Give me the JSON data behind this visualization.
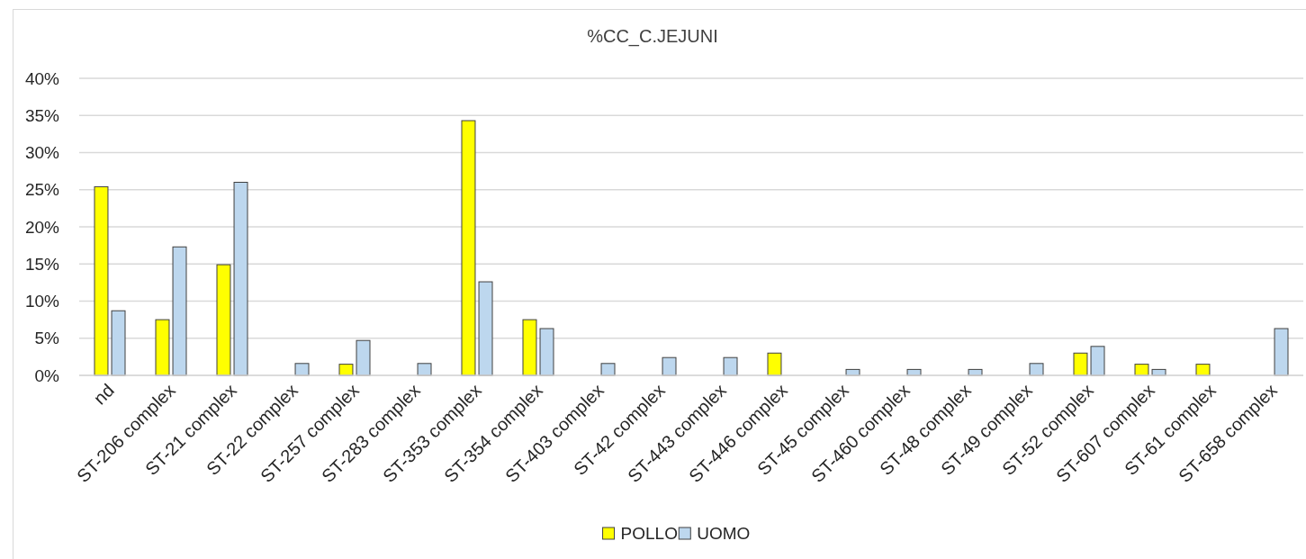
{
  "chart_data": {
    "type": "bar",
    "title": "%CC_C.JEJUNI",
    "categories": [
      "nd",
      "ST-206 complex",
      "ST-21 complex",
      "ST-22 complex",
      "ST-257 complex",
      "ST-283 complex",
      "ST-353 complex",
      "ST-354 complex",
      "ST-403 complex",
      "ST-42 complex",
      "ST-443 complex",
      "ST-446 complex",
      "ST-45 complex",
      "ST-460 complex",
      "ST-48 complex",
      "ST-49 complex",
      "ST-52 complex",
      "ST-607 complex",
      "ST-61 complex",
      "ST-658 complex"
    ],
    "series": [
      {
        "name": "POLLO",
        "color": "#ffff00",
        "values": [
          25.4,
          7.5,
          14.9,
          null,
          1.5,
          null,
          34.3,
          7.5,
          null,
          null,
          null,
          3.0,
          null,
          null,
          null,
          null,
          3.0,
          1.5,
          1.5,
          null
        ]
      },
      {
        "name": "UOMO",
        "color": "#bdd7ee",
        "values": [
          8.7,
          17.3,
          26.0,
          1.6,
          4.7,
          1.6,
          12.6,
          6.3,
          1.6,
          2.4,
          2.4,
          null,
          0.8,
          0.8,
          0.8,
          1.6,
          3.9,
          0.8,
          null,
          6.3
        ]
      }
    ],
    "ylim": [
      0,
      40
    ],
    "yticks": [
      {
        "value": 0,
        "label": "0%"
      },
      {
        "value": 5,
        "label": "5%"
      },
      {
        "value": 10,
        "label": "10%"
      },
      {
        "value": 15,
        "label": "15%"
      },
      {
        "value": 20,
        "label": "20%"
      },
      {
        "value": 25,
        "label": "25%"
      },
      {
        "value": 30,
        "label": "30%"
      },
      {
        "value": 35,
        "label": "35%"
      },
      {
        "value": 40,
        "label": "40%"
      }
    ],
    "grid": "y",
    "legend": "bottom"
  }
}
